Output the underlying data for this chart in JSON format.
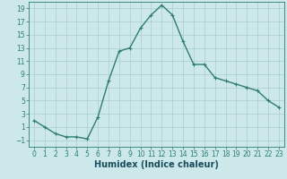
{
  "x": [
    0,
    1,
    2,
    3,
    4,
    5,
    6,
    7,
    8,
    9,
    10,
    11,
    12,
    13,
    14,
    15,
    16,
    17,
    18,
    19,
    20,
    21,
    22,
    23
  ],
  "y": [
    2,
    1,
    0,
    -0.5,
    -0.5,
    -0.8,
    2.5,
    8,
    12.5,
    13,
    16,
    18,
    19.5,
    18,
    14,
    10.5,
    10.5,
    8.5,
    8,
    7.5,
    7,
    6.5,
    5,
    4
  ],
  "line_color": "#2e7d6e",
  "marker_color": "#2e7d6e",
  "bg_color": "#cce8ea",
  "grid_color": "#aacdd0",
  "xlabel": "Humidex (Indice chaleur)",
  "xlim": [
    -0.5,
    23.5
  ],
  "ylim": [
    -2,
    20
  ],
  "yticks": [
    -1,
    1,
    3,
    5,
    7,
    9,
    11,
    13,
    15,
    17,
    19
  ],
  "xticks": [
    0,
    1,
    2,
    3,
    4,
    5,
    6,
    7,
    8,
    9,
    10,
    11,
    12,
    13,
    14,
    15,
    16,
    17,
    18,
    19,
    20,
    21,
    22,
    23
  ],
  "xlabel_fontsize": 7,
  "tick_fontsize": 5.5,
  "marker_size": 2.5,
  "line_width": 1.0
}
